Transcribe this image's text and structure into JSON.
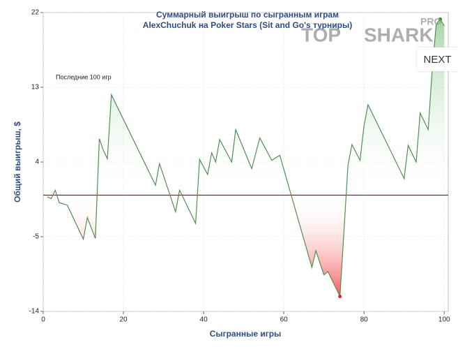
{
  "chart_data": {
    "type": "line",
    "title": "Суммарный выигрыш по сыгранным играм",
    "subtitle": "AlexChuchuk на Poker Stars (Sit and Go's турниры)",
    "annotation": "Последние 100 игр",
    "x_label": "Сыгранные игры",
    "y_label": "Общий выигрыш, $",
    "x": [
      1,
      2,
      3,
      4,
      6,
      10,
      11,
      13,
      14,
      15,
      16,
      17,
      28,
      29,
      33,
      34,
      38,
      39,
      41,
      42,
      43,
      44,
      47,
      48,
      52,
      54,
      57,
      59,
      67,
      68,
      70,
      71,
      74,
      76,
      77,
      79,
      80,
      81,
      90,
      91,
      93,
      94,
      96,
      97,
      98,
      99,
      100
    ],
    "series": [
      {
        "name": "Общий выигрыш",
        "color": "#4f8f4f",
        "values": [
          -0.2,
          -0.4,
          0.6,
          -0.9,
          -1.2,
          -5.3,
          -2.7,
          -5.2,
          6.8,
          5.4,
          4.4,
          12.1,
          1.2,
          3.8,
          -2.0,
          0.6,
          -3.4,
          4.3,
          2.5,
          5.1,
          4.0,
          6.7,
          4.0,
          7.9,
          3.2,
          6.9,
          4.2,
          4.8,
          -8.7,
          -6.7,
          -9.6,
          -9.2,
          -12.2,
          3.6,
          6.1,
          4.2,
          8.4,
          10.9,
          2.0,
          6.0,
          4.0,
          9.9,
          7.9,
          15.1,
          20.6,
          21.2,
          20.4
        ]
      }
    ],
    "positive_fill": "#2e9a2e",
    "negative_fill": "#ee1111",
    "zero_line_color": "#8b0000",
    "min_color": "#dd2222",
    "max_color": "#228822",
    "xlim": [
      0,
      101
    ],
    "ylim": [
      -14,
      22
    ],
    "xticks": [
      0,
      20,
      40,
      60,
      80,
      100
    ],
    "yticks": [
      -14,
      -5,
      4,
      13,
      22
    ],
    "grid": true
  },
  "logo": {
    "left": "TOP",
    "right": "SHARK",
    "badge": "PRO"
  },
  "button": "NEXT"
}
